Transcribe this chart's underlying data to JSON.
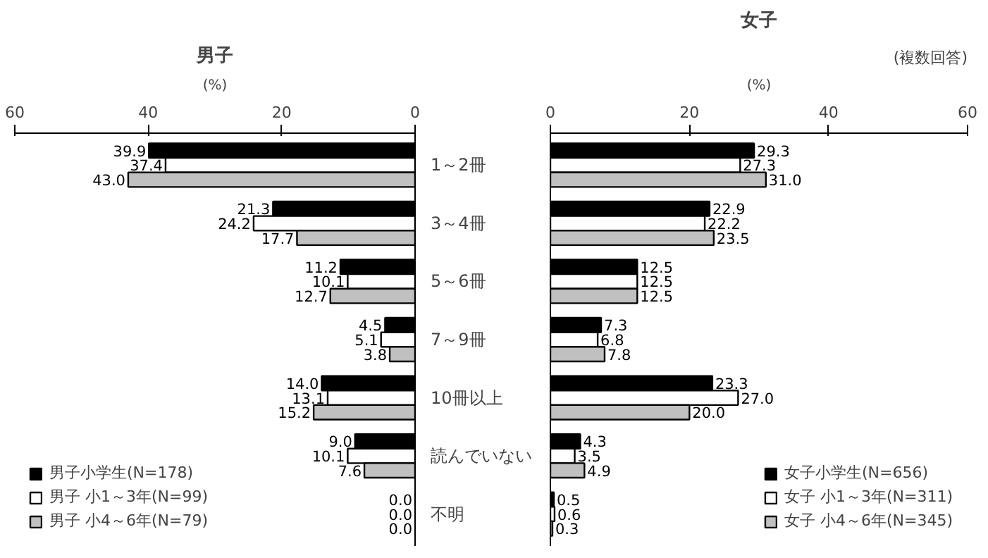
{
  "chart_data": [
    {
      "type": "bar",
      "orientation": "horizontal",
      "title": "男子",
      "xlabel": "(%)",
      "categories": [
        "1～2冊",
        "3～4冊",
        "5～6冊",
        "7～9冊",
        "10冊以上",
        "読んでいない",
        "不明"
      ],
      "series": [
        {
          "name": "男子小学生(N=178)",
          "color": "#000000",
          "values": [
            39.9,
            21.3,
            11.2,
            4.5,
            14.0,
            9.0,
            0.0
          ],
          "value_labels": [
            "39.9",
            "21.3",
            "11.2",
            "4.5",
            "14.0",
            "9.0",
            "0.0"
          ]
        },
        {
          "name": "男子 小1～3年(N=99)",
          "color": "#ffffff",
          "values": [
            37.4,
            24.2,
            10.1,
            5.1,
            13.1,
            10.1,
            0.0
          ],
          "value_labels": [
            "37.4",
            "24.2",
            "10.1",
            "5.1",
            "13.1",
            "10.1",
            "0.0"
          ]
        },
        {
          "name": "男子 小4～6年(N=79)",
          "color": "#c0c0c0",
          "values": [
            43.0,
            17.7,
            12.7,
            3.8,
            15.2,
            7.6,
            0.0
          ],
          "value_labels": [
            "43.0",
            "17.7",
            "12.7",
            "3.8",
            "15.2",
            "7.6",
            "0.0"
          ]
        }
      ],
      "xlim": [
        60,
        0
      ],
      "xticks": [
        60,
        40,
        20,
        0
      ],
      "grid": false,
      "legend": "bottom left"
    },
    {
      "type": "bar",
      "orientation": "horizontal",
      "title": "女子",
      "xlabel": "(%)",
      "annotations": [
        "(複数回答)"
      ],
      "series": [
        {
          "name": "女子小学生(N=656)",
          "color": "#000000",
          "values": [
            29.3,
            22.9,
            12.5,
            7.3,
            23.3,
            4.3,
            0.5
          ],
          "value_labels": [
            "29.3",
            "22.9",
            "12.5",
            "7.3",
            "23.3",
            "4.3",
            "0.5"
          ]
        },
        {
          "name": "女子 小1～3年(N=311)",
          "color": "#ffffff",
          "values": [
            27.3,
            22.2,
            12.5,
            6.8,
            27.0,
            3.5,
            0.6
          ],
          "value_labels": [
            "27.3",
            "22.2",
            "12.5",
            "6.8",
            "27.0",
            "3.5",
            "0.6"
          ]
        },
        {
          "name": "女子 小4～6年(N=345)",
          "color": "#c0c0c0",
          "values": [
            31.0,
            23.5,
            12.5,
            7.8,
            20.0,
            4.9,
            0.3
          ],
          "value_labels": [
            "31.0",
            "23.5",
            "12.5",
            "7.8",
            "20.0",
            "4.9",
            "0.3"
          ]
        }
      ],
      "xlim": [
        0,
        60
      ],
      "xticks": [
        0,
        20,
        40,
        60
      ],
      "grid": false,
      "legend": "bottom right",
      "tick_labels": "x"
    }
  ]
}
